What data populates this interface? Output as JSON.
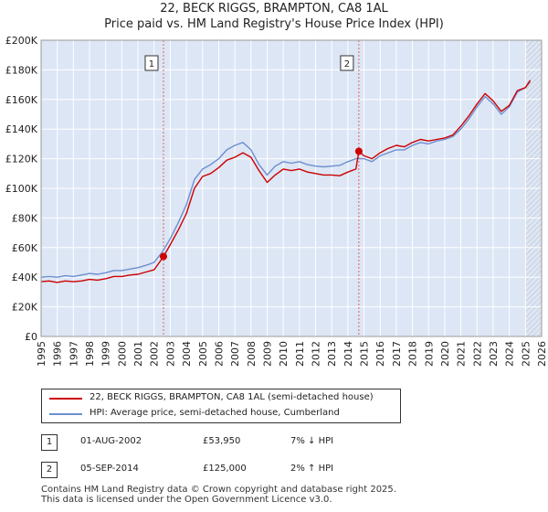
{
  "title_line1": "22, BECK RIGGS, BRAMPTON, CA8 1AL",
  "title_line2": "Price paid vs. HM Land Registry's House Price Index (HPI)",
  "chart_data": {
    "type": "line",
    "title": "22, BECK RIGGS, BRAMPTON, CA8 1AL — Price paid vs. HM Land Registry's House Price Index (HPI)",
    "xlim": [
      1995,
      2026
    ],
    "ylim": [
      0,
      200000
    ],
    "x_ticks": [
      1995,
      1996,
      1997,
      1998,
      1999,
      2000,
      2001,
      2002,
      2003,
      2004,
      2005,
      2006,
      2007,
      2008,
      2009,
      2010,
      2011,
      2012,
      2013,
      2014,
      2015,
      2016,
      2017,
      2018,
      2019,
      2020,
      2021,
      2022,
      2023,
      2024,
      2025,
      2026
    ],
    "y_ticks": [
      0,
      20000,
      40000,
      60000,
      80000,
      100000,
      120000,
      140000,
      160000,
      180000,
      200000
    ],
    "y_tick_labels": [
      "£0",
      "£20K",
      "£40K",
      "£60K",
      "£80K",
      "£100K",
      "£120K",
      "£140K",
      "£160K",
      "£180K",
      "£200K"
    ],
    "grid": true,
    "forecast_hatch_from": 2025.0,
    "series": [
      {
        "name": "22, BECK RIGGS, BRAMPTON, CA8 1AL (semi-detached house)",
        "color": "#cc0000",
        "x": [
          1995.0,
          1995.5,
          1996.0,
          1996.5,
          1997.0,
          1997.5,
          1998.0,
          1998.5,
          1999.0,
          1999.5,
          2000.0,
          2000.5,
          2001.0,
          2001.5,
          2002.0,
          2002.58,
          2003.0,
          2003.5,
          2004.0,
          2004.5,
          2005.0,
          2005.5,
          2006.0,
          2006.5,
          2007.0,
          2007.5,
          2008.0,
          2008.5,
          2009.0,
          2009.5,
          2010.0,
          2010.5,
          2011.0,
          2011.5,
          2012.0,
          2012.5,
          2013.0,
          2013.5,
          2014.0,
          2014.5,
          2014.68,
          2015.0,
          2015.5,
          2016.0,
          2016.5,
          2017.0,
          2017.5,
          2018.0,
          2018.5,
          2019.0,
          2019.5,
          2020.0,
          2020.5,
          2021.0,
          2021.5,
          2022.0,
          2022.5,
          2023.0,
          2023.5,
          2024.0,
          2024.5,
          2025.0,
          2025.3
        ],
        "values": [
          37000,
          37500,
          36500,
          37500,
          37000,
          37500,
          38500,
          38000,
          39000,
          40500,
          40500,
          41500,
          42000,
          43500,
          45000,
          53950,
          62000,
          72000,
          83000,
          100000,
          108000,
          110000,
          114000,
          119000,
          121000,
          124000,
          121000,
          112000,
          104000,
          109000,
          113000,
          112000,
          113000,
          111000,
          110000,
          109000,
          109000,
          108500,
          111000,
          113000,
          125000,
          122000,
          120000,
          124000,
          127000,
          129000,
          128000,
          131000,
          133000,
          132000,
          133000,
          134000,
          136000,
          142000,
          149000,
          157000,
          164000,
          159000,
          152000,
          156000,
          166000,
          168000,
          173000
        ]
      },
      {
        "name": "HPI: Average price, semi-detached house, Cumberland",
        "color": "#6b8fcf",
        "x": [
          1995.0,
          1995.5,
          1996.0,
          1996.5,
          1997.0,
          1997.5,
          1998.0,
          1998.5,
          1999.0,
          1999.5,
          2000.0,
          2000.5,
          2001.0,
          2001.5,
          2002.0,
          2002.5,
          2003.0,
          2003.5,
          2004.0,
          2004.5,
          2005.0,
          2005.5,
          2006.0,
          2006.5,
          2007.0,
          2007.5,
          2008.0,
          2008.5,
          2009.0,
          2009.5,
          2010.0,
          2010.5,
          2011.0,
          2011.5,
          2012.0,
          2012.5,
          2013.0,
          2013.5,
          2014.0,
          2014.5,
          2015.0,
          2015.5,
          2016.0,
          2016.5,
          2017.0,
          2017.5,
          2018.0,
          2018.5,
          2019.0,
          2019.5,
          2020.0,
          2020.5,
          2021.0,
          2021.5,
          2022.0,
          2022.5,
          2023.0,
          2023.5,
          2024.0,
          2024.5,
          2025.0,
          2025.3
        ],
        "values": [
          40000,
          40500,
          40000,
          41000,
          40500,
          41500,
          42500,
          42000,
          43000,
          44500,
          44500,
          45500,
          46500,
          48000,
          50000,
          57000,
          66000,
          77000,
          89000,
          106000,
          113000,
          116000,
          120000,
          126000,
          129000,
          131000,
          126000,
          116000,
          109000,
          115000,
          118000,
          117000,
          118000,
          116000,
          115000,
          114500,
          115000,
          115500,
          118000,
          120000,
          120000,
          118000,
          122000,
          124000,
          126000,
          126000,
          129000,
          131000,
          130000,
          132000,
          133000,
          135000,
          140000,
          147000,
          155000,
          162000,
          157000,
          150000,
          155000,
          165000,
          168000,
          172000
        ]
      }
    ],
    "annotations": [
      {
        "label": "1",
        "x": 2002.58,
        "y": 53950
      },
      {
        "label": "2",
        "x": 2014.68,
        "y": 125000
      }
    ]
  },
  "legend": [
    {
      "text": "22, BECK RIGGS, BRAMPTON, CA8 1AL (semi-detached house)",
      "color": "#cc0000"
    },
    {
      "text": "HPI: Average price, semi-detached house, Cumberland",
      "color": "#6b8fcf"
    }
  ],
  "transactions": [
    {
      "num": "1",
      "date": "01-AUG-2002",
      "price": "£53,950",
      "hpi": "7% ↓ HPI"
    },
    {
      "num": "2",
      "date": "05-SEP-2014",
      "price": "£125,000",
      "hpi": "2% ↑ HPI"
    }
  ],
  "footer_line1": "Contains HM Land Registry data © Crown copyright and database right 2025.",
  "footer_line2": "This data is licensed under the Open Government Licence v3.0."
}
